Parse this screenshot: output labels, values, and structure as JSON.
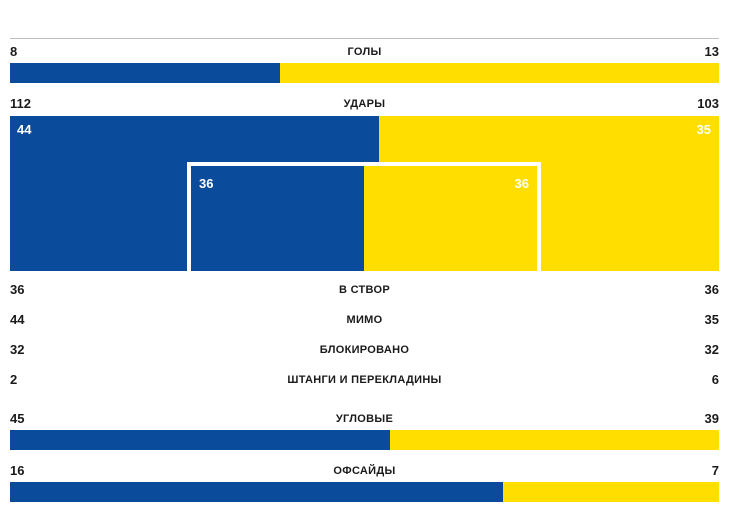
{
  "colors": {
    "left": "#0a4b9c",
    "right": "#ffde00"
  },
  "stats": {
    "goals": {
      "label": "ГОЛЫ",
      "left": 8,
      "right": 13
    },
    "shots": {
      "label": "УДАРЫ",
      "left": 112,
      "right": 103
    },
    "shots_split": {
      "left": 44,
      "right": 35
    },
    "shots_goal": {
      "left": 36,
      "right": 36
    },
    "on_target": {
      "label": "В СТВОР",
      "left": 36,
      "right": 36
    },
    "off_target": {
      "label": "МИМО",
      "left": 44,
      "right": 35
    },
    "blocked": {
      "label": "БЛОКИРОВАНО",
      "left": 32,
      "right": 32
    },
    "woodwork": {
      "label": "ШТАНГИ И ПЕРЕКЛАДИНЫ",
      "left": 2,
      "right": 6
    },
    "corners": {
      "label": "УГЛОВЫЕ",
      "left": 45,
      "right": 39
    },
    "offsides": {
      "label": "ОФСАЙДЫ",
      "left": 16,
      "right": 7
    }
  },
  "chart_data": {
    "type": "bar",
    "categories": [
      "ГОЛЫ",
      "УДАРЫ",
      "В СТВОР",
      "МИМО",
      "БЛОКИРОВАНО",
      "ШТАНГИ И ПЕРЕКЛАДИНЫ",
      "УГЛОВЫЕ",
      "ОФСАЙДЫ"
    ],
    "series": [
      {
        "values": [
          8,
          112,
          36,
          44,
          32,
          2,
          45,
          16
        ]
      },
      {
        "values": [
          13,
          103,
          36,
          35,
          32,
          6,
          39,
          7
        ]
      }
    ]
  }
}
